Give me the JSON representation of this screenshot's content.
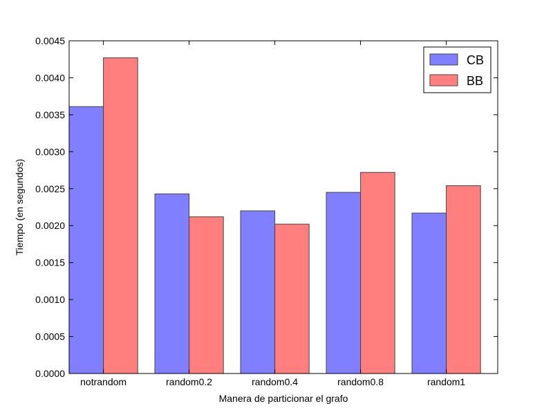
{
  "chart_data": {
    "type": "bar",
    "title": "",
    "xlabel": "Manera de particionar el grafo",
    "ylabel": "Tiempo (en segundos)",
    "categories": [
      "notrandom",
      "random0.2",
      "random0.4",
      "random0.8",
      "random1"
    ],
    "series": [
      {
        "name": "CB",
        "color": "#7f7fff",
        "values": [
          0.00361,
          0.00243,
          0.0022,
          0.00245,
          0.00217
        ]
      },
      {
        "name": "BB",
        "color": "#ff7f7f",
        "values": [
          0.00427,
          0.00212,
          0.00202,
          0.00272,
          0.00254
        ]
      }
    ],
    "ylim": [
      0,
      0.0045
    ],
    "yticks": [
      "0.0000",
      "0.0005",
      "0.0010",
      "0.0015",
      "0.0020",
      "0.0025",
      "0.0030",
      "0.0035",
      "0.0040",
      "0.0045"
    ],
    "grid": false,
    "legend_position": "top-right"
  }
}
